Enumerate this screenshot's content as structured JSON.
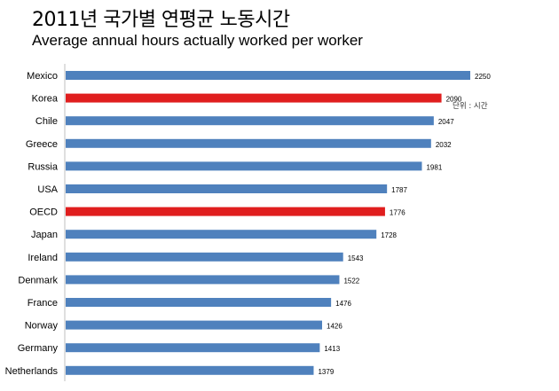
{
  "header": {
    "title": "2011년 국가별 연평균 노동시간",
    "subtitle": "Average annual hours actually worked per worker"
  },
  "chart_data": {
    "type": "bar",
    "orientation": "horizontal",
    "title": "2011년 국가별 연평균 노동시간",
    "subtitle": "Average annual hours actually worked per worker",
    "unit_note": "단위 : 시간",
    "categories": [
      "Mexico",
      "Korea",
      "Chile",
      "Greece",
      "Russia",
      "USA",
      "OECD",
      "Japan",
      "Ireland",
      "Denmark",
      "France",
      "Norway",
      "Germany",
      "Netherlands"
    ],
    "values": [
      2250,
      2090,
      2047,
      2032,
      1981,
      1787,
      1776,
      1728,
      1543,
      1522,
      1476,
      1426,
      1413,
      1379
    ],
    "highlighted": [
      "Korea",
      "OECD"
    ],
    "xlim": [
      0,
      2250
    ],
    "grid": false,
    "legend": "none",
    "colors": {
      "default": "#4f81bd",
      "highlight": "#e01e1e",
      "axis": "#bfbfbf"
    }
  }
}
